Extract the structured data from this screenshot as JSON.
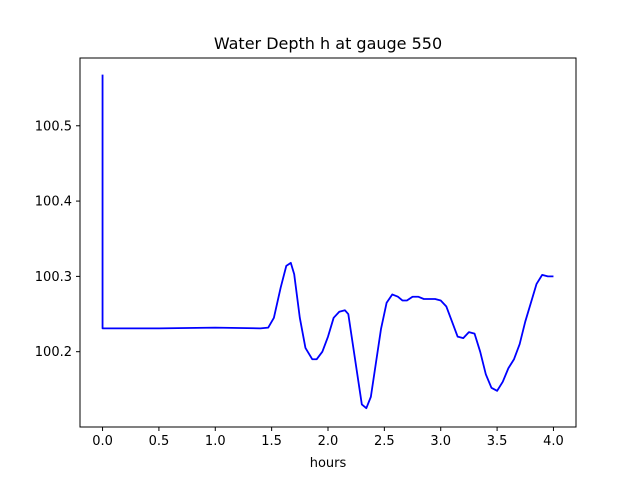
{
  "chart_data": {
    "type": "line",
    "title": "Water Depth h at gauge 550",
    "xlabel": "hours",
    "ylabel": "",
    "xlim": [
      -0.2,
      4.2
    ],
    "ylim": [
      100.1,
      100.59
    ],
    "xticks": [
      0.0,
      0.5,
      1.0,
      1.5,
      2.0,
      2.5,
      3.0,
      3.5,
      4.0
    ],
    "xtick_labels": [
      "0.0",
      "0.5",
      "1.0",
      "1.5",
      "2.0",
      "2.5",
      "3.0",
      "3.5",
      "4.0"
    ],
    "yticks": [
      100.2,
      100.3,
      100.4,
      100.5
    ],
    "ytick_labels": [
      "100.2",
      "100.3",
      "100.4",
      "100.5"
    ],
    "grid": false,
    "legend": "none",
    "series": [
      {
        "color": "#0000ff",
        "x": [
          0.0,
          0.0,
          0.01,
          0.5,
          1.0,
          1.4,
          1.47,
          1.52,
          1.58,
          1.63,
          1.67,
          1.7,
          1.75,
          1.8,
          1.86,
          1.9,
          1.95,
          2.0,
          2.05,
          2.1,
          2.15,
          2.18,
          2.21,
          2.25,
          2.3,
          2.34,
          2.38,
          2.42,
          2.47,
          2.52,
          2.57,
          2.62,
          2.66,
          2.7,
          2.75,
          2.8,
          2.85,
          2.9,
          2.95,
          3.0,
          3.05,
          3.1,
          3.15,
          3.2,
          3.25,
          3.3,
          3.35,
          3.4,
          3.45,
          3.5,
          3.55,
          3.6,
          3.65,
          3.7,
          3.75,
          3.8,
          3.85,
          3.9,
          3.95,
          4.0
        ],
        "y": [
          100.568,
          100.231,
          100.231,
          100.231,
          100.232,
          100.231,
          100.232,
          100.245,
          100.285,
          100.314,
          100.318,
          100.303,
          100.245,
          100.205,
          100.19,
          100.19,
          100.2,
          100.22,
          100.245,
          100.253,
          100.255,
          100.25,
          100.22,
          100.18,
          100.13,
          100.125,
          100.14,
          100.18,
          100.23,
          100.265,
          100.276,
          100.273,
          100.268,
          100.268,
          100.273,
          100.273,
          100.27,
          100.27,
          100.27,
          100.268,
          100.26,
          100.24,
          100.22,
          100.218,
          100.226,
          100.224,
          100.2,
          100.17,
          100.152,
          100.148,
          100.16,
          100.178,
          100.19,
          100.21,
          100.24,
          100.265,
          100.29,
          100.302,
          100.3,
          100.3
        ]
      }
    ]
  }
}
